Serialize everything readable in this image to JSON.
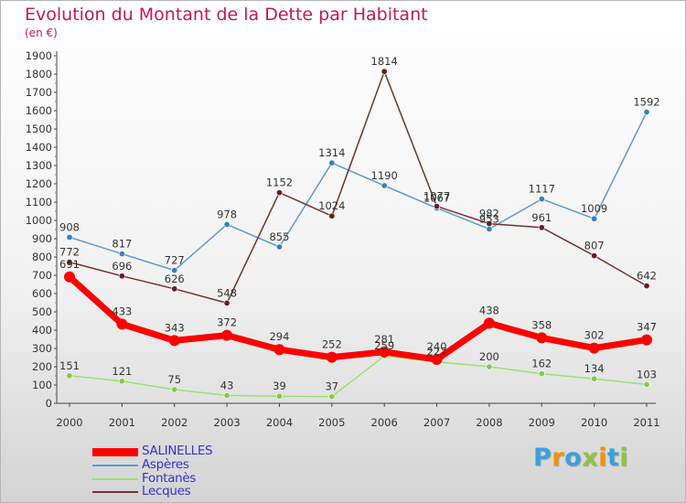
{
  "header": {
    "title": "Evolution du Montant de la Dette par Habitant",
    "subtitle": "(en €)"
  },
  "chart_data": {
    "type": "line",
    "title": "Evolution du Montant de la Dette par Habitant",
    "subtitle": "(en €)",
    "categories": [
      "2000",
      "2001",
      "2002",
      "2003",
      "2004",
      "2005",
      "2006",
      "2007",
      "2008",
      "2009",
      "2010",
      "2011"
    ],
    "ylim": [
      0,
      1900
    ],
    "yticks": [
      0,
      100,
      200,
      300,
      400,
      500,
      600,
      700,
      800,
      900,
      1000,
      1100,
      1200,
      1300,
      1400,
      1500,
      1600,
      1700,
      1800,
      1900
    ],
    "grid": false,
    "legend_position": "bottom-left",
    "series": [
      {
        "name": "SALINELLES",
        "color": "#ff0000",
        "emphasis": true,
        "values": [
          691,
          433,
          343,
          372,
          294,
          252,
          281,
          240,
          438,
          358,
          302,
          347
        ]
      },
      {
        "name": "Aspères",
        "color": "#5b9bd5",
        "marker": "#3a7fc1",
        "values": [
          908,
          817,
          727,
          978,
          855,
          1314,
          1190,
          1067,
          953,
          1117,
          1009,
          1592
        ]
      },
      {
        "name": "Fontanès",
        "color": "#99e070",
        "marker": "#7fcc4d",
        "values": [
          151,
          121,
          75,
          43,
          39,
          37,
          259,
          227,
          200,
          162,
          134,
          103
        ]
      },
      {
        "name": "Lecques",
        "color": "#7a2e2e",
        "marker": "#6b1f1f",
        "values": [
          772,
          696,
          626,
          548,
          1152,
          1024,
          1814,
          1077,
          982,
          961,
          807,
          642
        ]
      }
    ]
  },
  "brand": {
    "letters": [
      "P",
      "r",
      "o",
      "x",
      "i",
      "t",
      "i"
    ],
    "colors": [
      "#3aa0dc",
      "#f39200",
      "#3aa0dc",
      "#8cc63f",
      "#f39200",
      "#3aa0dc",
      "#8cc63f"
    ]
  }
}
